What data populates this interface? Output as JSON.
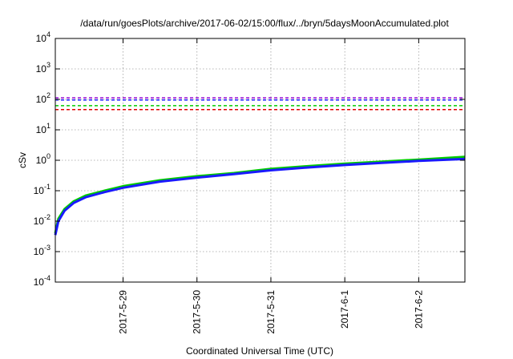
{
  "chart_data": {
    "type": "line",
    "title": "/data/run/goesPlots/archive/2017-06-02/15:00/flux/../bryn/5daysMoonAccumulated.plot",
    "xlabel": "Coordinated Universal Time (UTC)",
    "ylabel": "cSv",
    "yscale": "log",
    "ylim": [
      0.0001,
      10000
    ],
    "xlim": [
      "2017-05-28 02:00",
      "2017-06-02 15:00"
    ],
    "x_ticks": [
      "2017-5-29",
      "2017-5-30",
      "2017-5-31",
      "2017-6-1",
      "2017-6-2"
    ],
    "y_ticks": [
      {
        "value": 0.0001,
        "base": "10",
        "exp": "-4"
      },
      {
        "value": 0.001,
        "base": "10",
        "exp": "-3"
      },
      {
        "value": 0.01,
        "base": "10",
        "exp": "-2"
      },
      {
        "value": 0.1,
        "base": "10",
        "exp": "-1"
      },
      {
        "value": 1,
        "base": "10",
        "exp": "0"
      },
      {
        "value": 10,
        "base": "10",
        "exp": "1"
      },
      {
        "value": 100,
        "base": "10",
        "exp": "2"
      },
      {
        "value": 1000,
        "base": "10",
        "exp": "3"
      },
      {
        "value": 10000,
        "base": "10",
        "exp": "4"
      }
    ],
    "grid": true,
    "series": [
      {
        "color": "#00cc00",
        "style": "solid",
        "width": 3,
        "x": [
          "2017-05-28 02:00",
          "2017-05-28 03:00",
          "2017-05-28 05:00",
          "2017-05-28 08:00",
          "2017-05-28 12:00",
          "2017-05-28 18:00",
          "2017-05-29 00:00",
          "2017-05-29 12:00",
          "2017-05-30 00:00",
          "2017-05-30 12:00",
          "2017-05-31 00:00",
          "2017-05-31 12:00",
          "2017-06-01 00:00",
          "2017-06-01 12:00",
          "2017-06-02 00:00",
          "2017-06-02 15:00"
        ],
        "values": [
          0.004,
          0.012,
          0.025,
          0.045,
          0.07,
          0.1,
          0.14,
          0.22,
          0.3,
          0.38,
          0.52,
          0.64,
          0.77,
          0.9,
          1.05,
          1.3
        ]
      },
      {
        "color": "#1a1aff",
        "style": "solid",
        "width": 3,
        "x": [
          "2017-05-28 02:00",
          "2017-05-28 03:00",
          "2017-05-28 05:00",
          "2017-05-28 08:00",
          "2017-05-28 12:00",
          "2017-05-28 18:00",
          "2017-05-29 00:00",
          "2017-05-29 12:00",
          "2017-05-30 00:00",
          "2017-05-30 12:00",
          "2017-05-31 00:00",
          "2017-05-31 12:00",
          "2017-06-01 00:00",
          "2017-06-01 12:00",
          "2017-06-02 00:00",
          "2017-06-02 15:00"
        ],
        "values": [
          0.0035,
          0.01,
          0.022,
          0.04,
          0.062,
          0.09,
          0.125,
          0.2,
          0.27,
          0.35,
          0.47,
          0.58,
          0.7,
          0.82,
          0.95,
          1.1
        ]
      },
      {
        "color": "#9400d3",
        "style": "dashed",
        "width": 1.5,
        "x": [
          "2017-05-28 02:00",
          "2017-06-02 15:00"
        ],
        "values": [
          112,
          112
        ]
      },
      {
        "color": "#1a1aff",
        "style": "dashed",
        "width": 1.5,
        "x": [
          "2017-05-28 02:00",
          "2017-06-02 15:00"
        ],
        "values": [
          95,
          95
        ]
      },
      {
        "color": "#00cc00",
        "style": "dashed",
        "width": 1.5,
        "x": [
          "2017-05-28 02:00",
          "2017-06-02 15:00"
        ],
        "values": [
          62,
          62
        ]
      },
      {
        "color": "#e00000",
        "style": "dashed",
        "width": 1.5,
        "x": [
          "2017-05-28 02:00",
          "2017-06-02 15:00"
        ],
        "values": [
          46,
          46
        ]
      }
    ]
  }
}
